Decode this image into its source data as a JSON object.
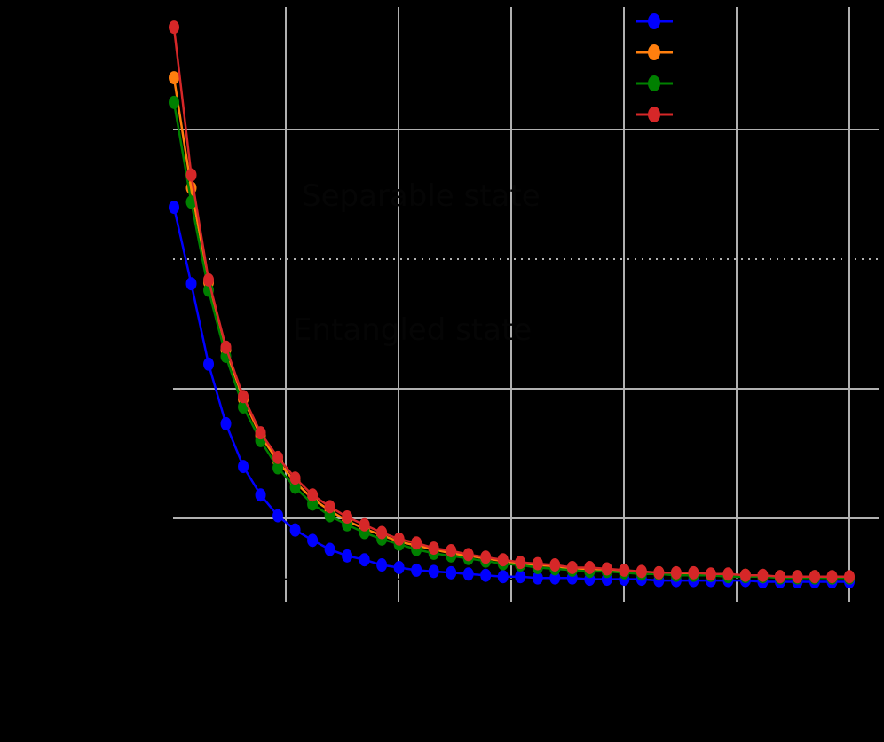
{
  "chart_data": {
    "type": "line",
    "title": "",
    "xlabel": "",
    "ylabel": "",
    "grid": true,
    "legend_position": "upper right",
    "x": [
      1,
      2,
      3,
      4,
      5,
      6,
      7,
      8,
      9,
      10,
      11,
      12,
      13,
      14,
      15,
      16,
      17,
      18,
      19,
      20,
      21,
      22,
      23,
      24,
      25,
      26,
      27,
      28,
      29,
      30,
      31,
      32,
      33,
      34,
      35,
      36,
      37,
      38,
      39,
      40
    ],
    "series": [
      {
        "name": "",
        "color": "#0000ff",
        "values": [
          3.4,
          2.81,
          2.19,
          1.73,
          1.4,
          1.18,
          1.02,
          0.91,
          0.83,
          0.76,
          0.71,
          0.68,
          0.64,
          0.62,
          0.6,
          0.59,
          0.58,
          0.57,
          0.56,
          0.55,
          0.55,
          0.54,
          0.54,
          0.54,
          0.53,
          0.53,
          0.53,
          0.53,
          0.52,
          0.52,
          0.52,
          0.52,
          0.52,
          0.52,
          0.51,
          0.51,
          0.51,
          0.51,
          0.51,
          0.51
        ]
      },
      {
        "name": "",
        "color": "#ff7f0e",
        "values": [
          4.4,
          3.55,
          2.82,
          2.3,
          1.92,
          1.64,
          1.44,
          1.28,
          1.15,
          1.06,
          0.98,
          0.92,
          0.87,
          0.82,
          0.79,
          0.76,
          0.73,
          0.71,
          0.69,
          0.67,
          0.65,
          0.64,
          0.63,
          0.61,
          0.61,
          0.6,
          0.59,
          0.58,
          0.58,
          0.57,
          0.57,
          0.56,
          0.56,
          0.56,
          0.55,
          0.55,
          0.55,
          0.55,
          0.54,
          0.54
        ]
      },
      {
        "name": "",
        "color": "#008000",
        "values": [
          4.21,
          3.44,
          2.76,
          2.25,
          1.86,
          1.6,
          1.39,
          1.24,
          1.11,
          1.02,
          0.95,
          0.89,
          0.84,
          0.8,
          0.76,
          0.73,
          0.71,
          0.69,
          0.67,
          0.65,
          0.64,
          0.62,
          0.61,
          0.6,
          0.59,
          0.59,
          0.58,
          0.57,
          0.57,
          0.56,
          0.56,
          0.56,
          0.55,
          0.55,
          0.55,
          0.54,
          0.54,
          0.54,
          0.54,
          0.54
        ]
      },
      {
        "name": "",
        "color": "#d62728",
        "values": [
          4.79,
          3.65,
          2.84,
          2.32,
          1.94,
          1.66,
          1.47,
          1.31,
          1.18,
          1.09,
          1.01,
          0.95,
          0.89,
          0.84,
          0.81,
          0.77,
          0.75,
          0.72,
          0.7,
          0.68,
          0.66,
          0.65,
          0.64,
          0.62,
          0.62,
          0.61,
          0.6,
          0.59,
          0.58,
          0.58,
          0.58,
          0.57,
          0.57,
          0.56,
          0.56,
          0.55,
          0.55,
          0.55,
          0.55,
          0.55
        ]
      }
    ],
    "reference_lines": [
      {
        "y": 3.0,
        "style": "dotted",
        "color": "#b0b0b0",
        "meaning": "boundary between separable and entangled regions"
      },
      {
        "y": 0.53,
        "style": "solid",
        "color": "#000000"
      }
    ],
    "annotations": [
      {
        "text": "Separable state",
        "x": 9.5,
        "y": 3.5
      },
      {
        "text": "Entangled state",
        "x": 9.5,
        "y": 2.5
      }
    ],
    "xlim": [
      0.5,
      40.5
    ],
    "ylim": [
      0.0,
      5.0
    ]
  },
  "annotations": {
    "separable": "Separable state",
    "entangled": "Entangled state"
  },
  "legend": {
    "items": [
      {
        "label": "",
        "color": "#0000ff"
      },
      {
        "label": "",
        "color": "#ff7f0e"
      },
      {
        "label": "",
        "color": "#008000"
      },
      {
        "label": "",
        "color": "#d62728"
      }
    ]
  }
}
